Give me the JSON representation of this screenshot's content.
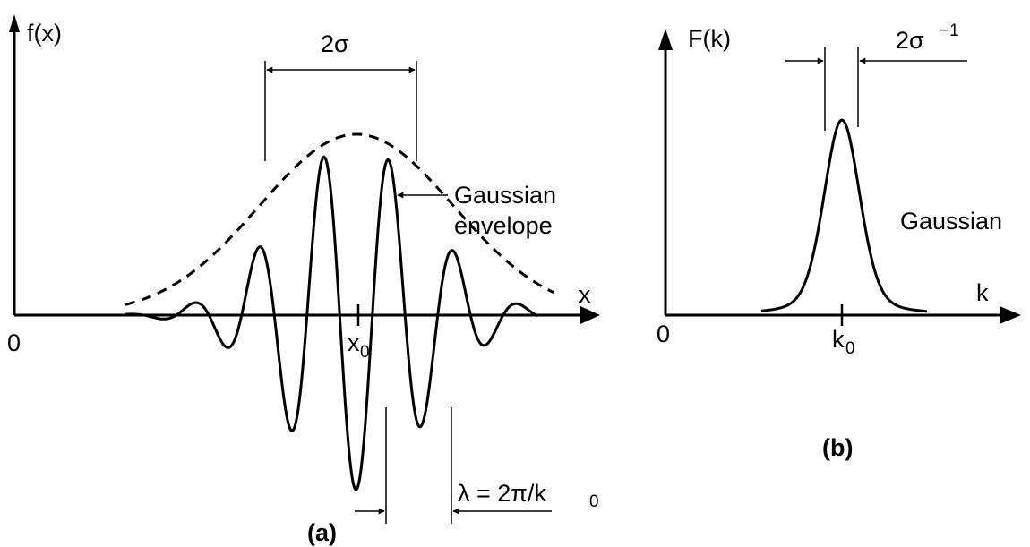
{
  "panel_a": {
    "y_axis_label": "f(x)",
    "x_axis_label": "x",
    "origin_label": "0",
    "center_label_main": "x",
    "center_label_sub": "0",
    "width_label": "2σ",
    "envelope_label_line1": "Gaussian",
    "envelope_label_line2": "envelope",
    "wavelength_label_main": "λ = 2π/k",
    "wavelength_label_sub": "0",
    "panel_label": "(a)"
  },
  "panel_b": {
    "y_axis_label": "F(k)",
    "x_axis_label": "k",
    "origin_label": "0",
    "center_label_main": "k",
    "center_label_sub": "0",
    "width_label_main": "2σ",
    "width_label_sup": "−1",
    "curve_label": "Gaussian",
    "panel_label": "(b)"
  },
  "colors": {
    "ink": "#000000",
    "background": "#ffffff"
  }
}
